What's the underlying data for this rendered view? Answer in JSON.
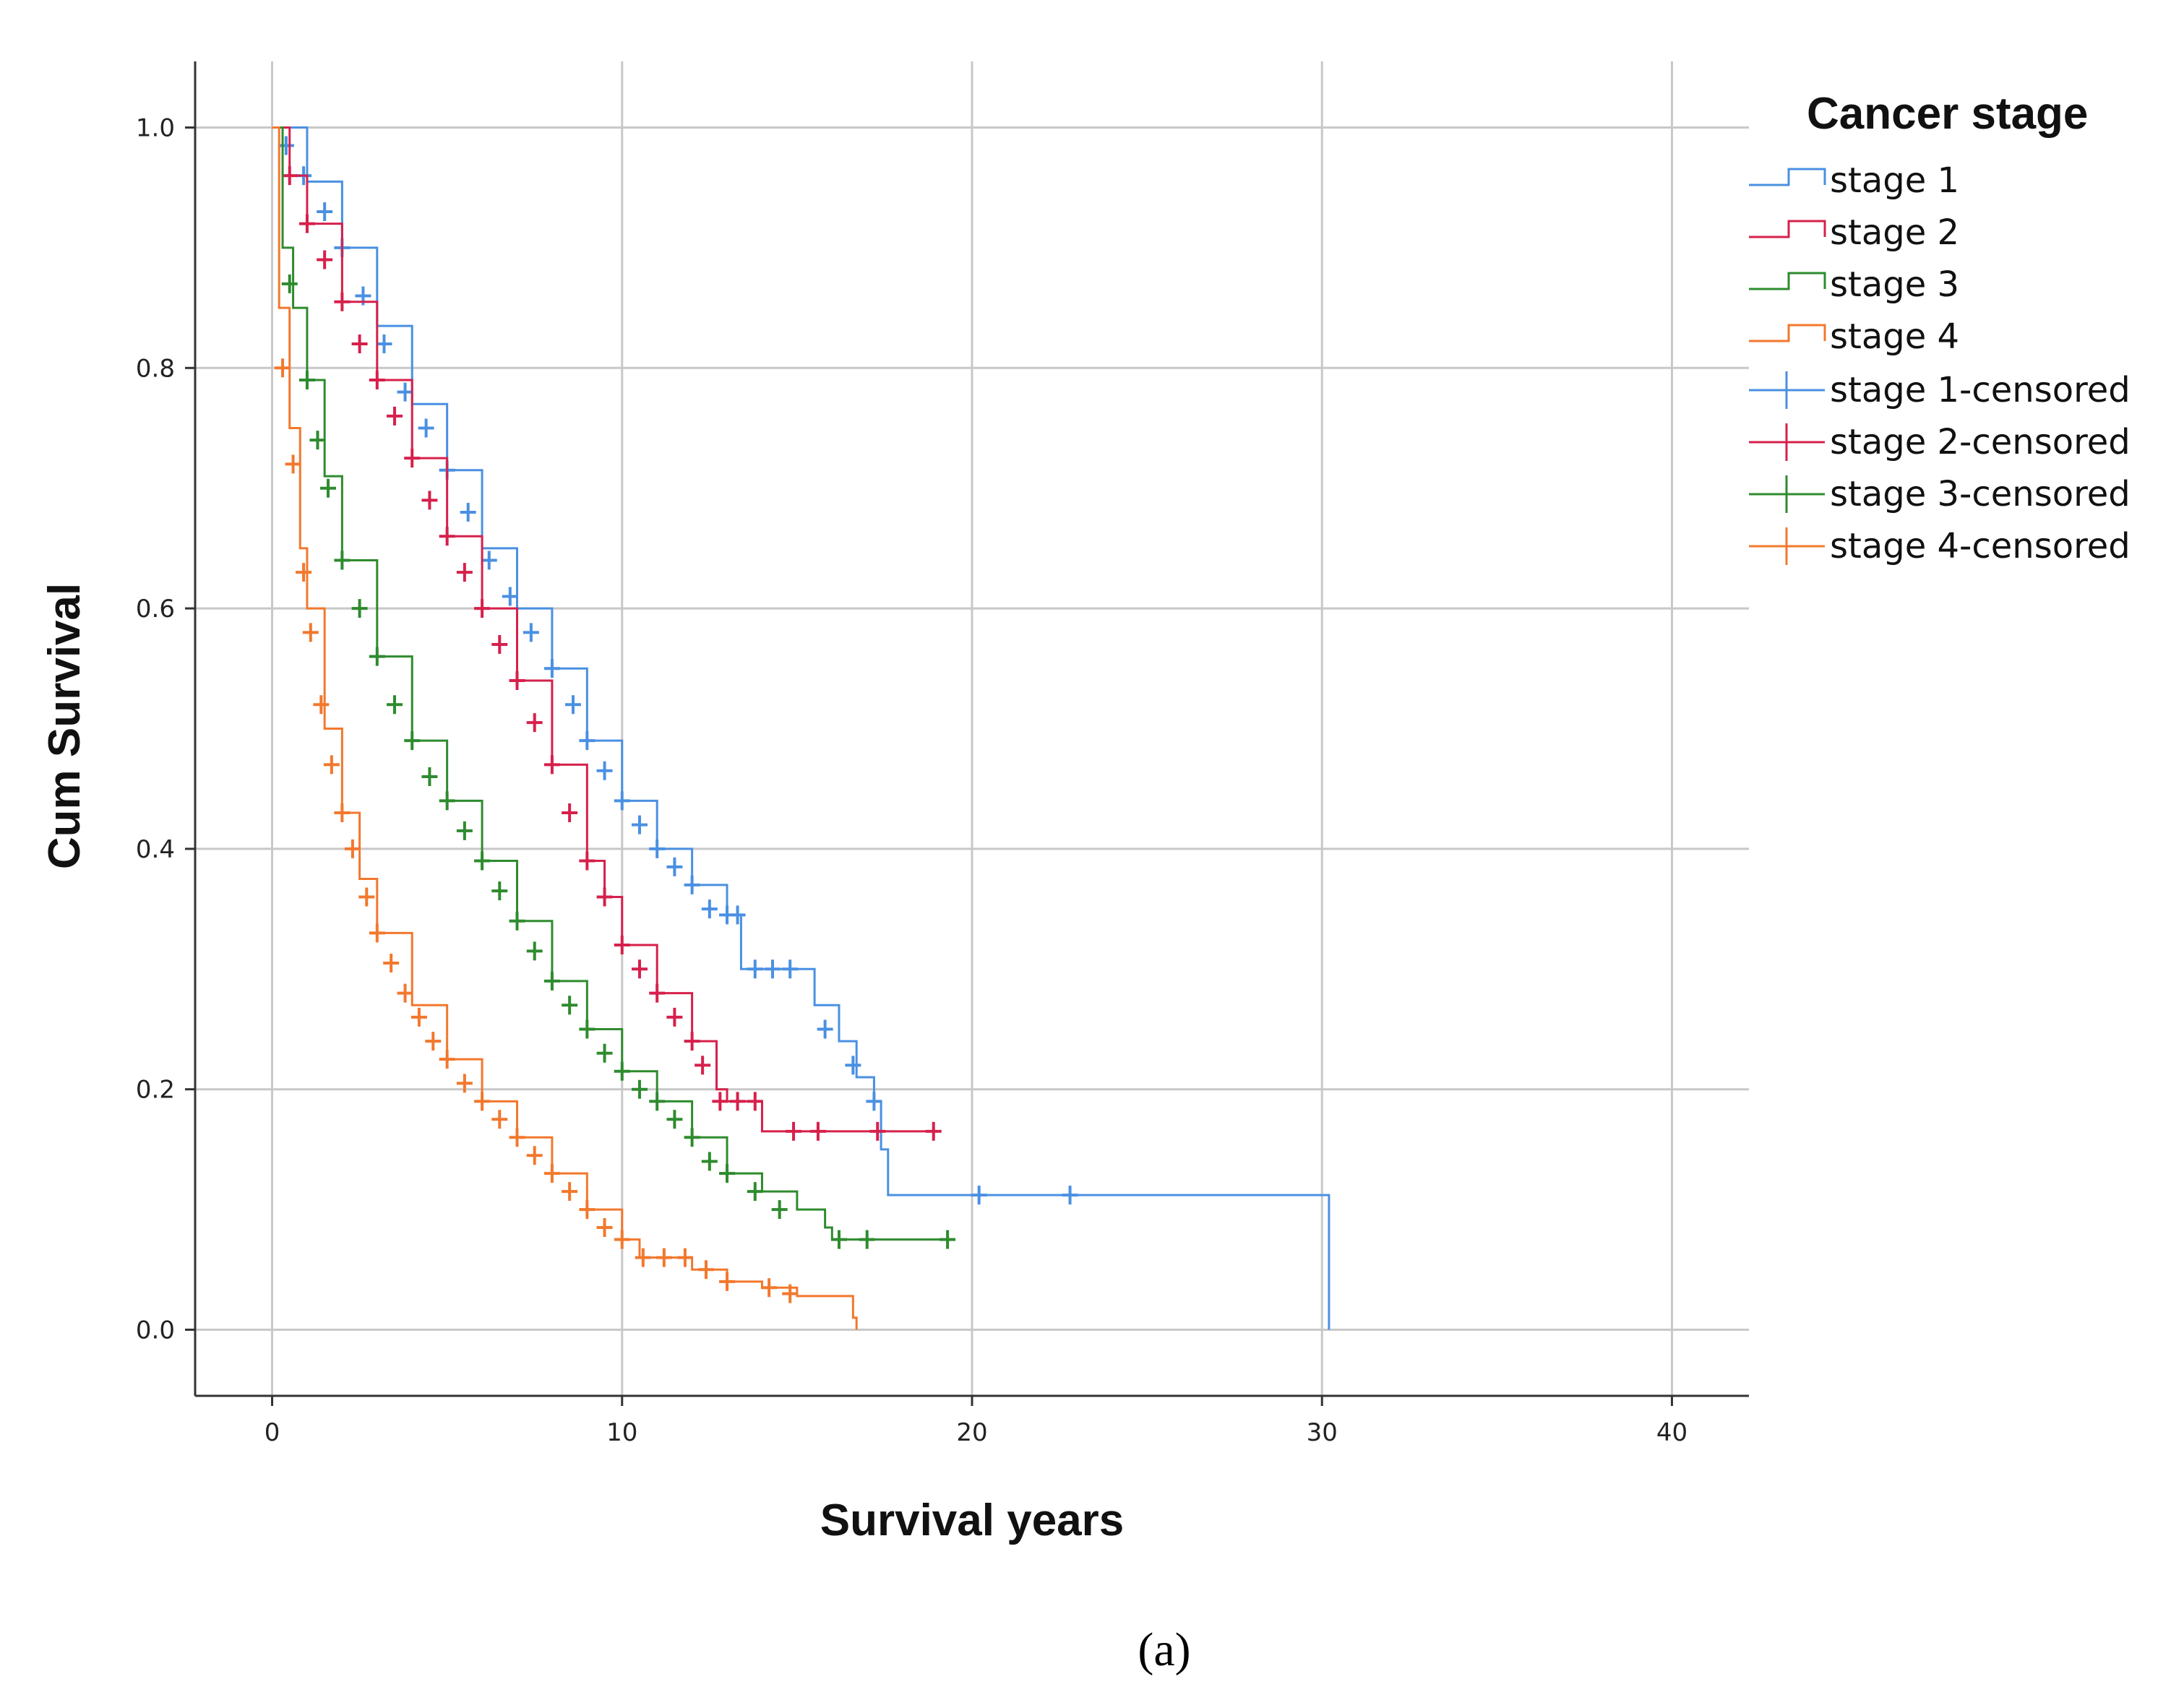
{
  "chart_data": {
    "type": "line",
    "subtype": "kaplan-meier",
    "xlabel": "Survival years",
    "ylabel": "Cum Survival",
    "xlim": [
      -2.2,
      42.2
    ],
    "ylim": [
      -0.055,
      1.055
    ],
    "xticks": [
      0,
      10,
      20,
      30,
      40
    ],
    "yticks": [
      0.0,
      0.2,
      0.4,
      0.6,
      0.8,
      1.0
    ],
    "ytick_labels": [
      "0.0",
      "0.2",
      "0.4",
      "0.6",
      "0.8",
      "1.0"
    ],
    "grid": true,
    "legend_title": "Cancer stage",
    "legend_position": "right",
    "caption": "(a)",
    "series": [
      {
        "name": "stage 1",
        "censored_label": "stage 1-censored",
        "color": "#4a90e2",
        "points": [
          [
            0,
            1.0
          ],
          [
            1,
            0.955
          ],
          [
            2,
            0.9
          ],
          [
            3,
            0.835
          ],
          [
            4,
            0.77
          ],
          [
            5,
            0.715
          ],
          [
            6,
            0.65
          ],
          [
            7,
            0.6
          ],
          [
            8,
            0.55
          ],
          [
            9,
            0.49
          ],
          [
            10,
            0.44
          ],
          [
            11,
            0.4
          ],
          [
            12,
            0.37
          ],
          [
            13,
            0.345
          ],
          [
            13.4,
            0.3
          ],
          [
            15.3,
            0.3
          ],
          [
            15.5,
            0.27
          ],
          [
            16.2,
            0.24
          ],
          [
            16.7,
            0.21
          ],
          [
            17.2,
            0.19
          ],
          [
            17.4,
            0.15
          ],
          [
            17.6,
            0.112
          ],
          [
            30.2,
            0.112
          ],
          [
            30.2,
            0.0
          ]
        ],
        "censored": [
          [
            0.4,
            0.985
          ],
          [
            0.9,
            0.96
          ],
          [
            1.5,
            0.93
          ],
          [
            2,
            0.9
          ],
          [
            2.6,
            0.86
          ],
          [
            3.2,
            0.82
          ],
          [
            3.8,
            0.78
          ],
          [
            4.4,
            0.75
          ],
          [
            5,
            0.715
          ],
          [
            5.6,
            0.68
          ],
          [
            6.2,
            0.64
          ],
          [
            6.8,
            0.61
          ],
          [
            7.4,
            0.58
          ],
          [
            8,
            0.55
          ],
          [
            8.6,
            0.52
          ],
          [
            9,
            0.49
          ],
          [
            9.5,
            0.465
          ],
          [
            10,
            0.44
          ],
          [
            10.5,
            0.42
          ],
          [
            11,
            0.4
          ],
          [
            11.5,
            0.385
          ],
          [
            12,
            0.37
          ],
          [
            12.5,
            0.35
          ],
          [
            13,
            0.345
          ],
          [
            13.3,
            0.345
          ],
          [
            13.8,
            0.3
          ],
          [
            14.3,
            0.3
          ],
          [
            14.8,
            0.3
          ],
          [
            15.8,
            0.25
          ],
          [
            16.6,
            0.22
          ],
          [
            17.2,
            0.19
          ],
          [
            20.2,
            0.112
          ],
          [
            22.8,
            0.112
          ]
        ]
      },
      {
        "name": "stage 2",
        "censored_label": "stage 2-censored",
        "color": "#d6204b",
        "points": [
          [
            0,
            1.0
          ],
          [
            0.5,
            0.96
          ],
          [
            1,
            0.92
          ],
          [
            2,
            0.855
          ],
          [
            3,
            0.79
          ],
          [
            4,
            0.725
          ],
          [
            5,
            0.66
          ],
          [
            6,
            0.6
          ],
          [
            7,
            0.54
          ],
          [
            8,
            0.47
          ],
          [
            9,
            0.39
          ],
          [
            9.5,
            0.36
          ],
          [
            10,
            0.32
          ],
          [
            11,
            0.28
          ],
          [
            12,
            0.24
          ],
          [
            12.7,
            0.2
          ],
          [
            13,
            0.19
          ],
          [
            13.9,
            0.19
          ],
          [
            14,
            0.165
          ],
          [
            18.9,
            0.165
          ]
        ],
        "censored": [
          [
            0.5,
            0.96
          ],
          [
            1,
            0.92
          ],
          [
            1.5,
            0.89
          ],
          [
            2,
            0.855
          ],
          [
            2.5,
            0.82
          ],
          [
            3,
            0.79
          ],
          [
            3.5,
            0.76
          ],
          [
            4,
            0.725
          ],
          [
            4.5,
            0.69
          ],
          [
            5,
            0.66
          ],
          [
            5.5,
            0.63
          ],
          [
            6,
            0.6
          ],
          [
            6.5,
            0.57
          ],
          [
            7,
            0.54
          ],
          [
            7.5,
            0.505
          ],
          [
            8,
            0.47
          ],
          [
            8.5,
            0.43
          ],
          [
            9,
            0.39
          ],
          [
            9.5,
            0.36
          ],
          [
            10,
            0.32
          ],
          [
            10.5,
            0.3
          ],
          [
            11,
            0.28
          ],
          [
            11.5,
            0.26
          ],
          [
            12,
            0.24
          ],
          [
            12.3,
            0.22
          ],
          [
            12.8,
            0.19
          ],
          [
            13.3,
            0.19
          ],
          [
            13.8,
            0.19
          ],
          [
            14.9,
            0.165
          ],
          [
            15.6,
            0.165
          ],
          [
            17.3,
            0.165
          ],
          [
            18.9,
            0.165
          ]
        ]
      },
      {
        "name": "stage 3",
        "censored_label": "stage 3-censored",
        "color": "#2e8b2e",
        "points": [
          [
            0,
            1.0
          ],
          [
            0.3,
            0.9
          ],
          [
            0.6,
            0.85
          ],
          [
            1,
            0.79
          ],
          [
            1.5,
            0.71
          ],
          [
            2,
            0.64
          ],
          [
            3,
            0.56
          ],
          [
            4,
            0.49
          ],
          [
            5,
            0.44
          ],
          [
            6,
            0.39
          ],
          [
            7,
            0.34
          ],
          [
            8,
            0.29
          ],
          [
            9,
            0.25
          ],
          [
            10,
            0.215
          ],
          [
            11,
            0.19
          ],
          [
            12,
            0.16
          ],
          [
            13,
            0.13
          ],
          [
            14,
            0.115
          ],
          [
            15,
            0.1
          ],
          [
            15.7,
            0.1
          ],
          [
            15.8,
            0.085
          ],
          [
            16,
            0.075
          ],
          [
            19.4,
            0.075
          ]
        ],
        "censored": [
          [
            0.5,
            0.87
          ],
          [
            1,
            0.79
          ],
          [
            1.3,
            0.74
          ],
          [
            1.6,
            0.7
          ],
          [
            2,
            0.64
          ],
          [
            2.5,
            0.6
          ],
          [
            3,
            0.56
          ],
          [
            3.5,
            0.52
          ],
          [
            4,
            0.49
          ],
          [
            4.5,
            0.46
          ],
          [
            5,
            0.44
          ],
          [
            5.5,
            0.415
          ],
          [
            6,
            0.39
          ],
          [
            6.5,
            0.365
          ],
          [
            7,
            0.34
          ],
          [
            7.5,
            0.315
          ],
          [
            8,
            0.29
          ],
          [
            8.5,
            0.27
          ],
          [
            9,
            0.25
          ],
          [
            9.5,
            0.23
          ],
          [
            10,
            0.215
          ],
          [
            10.5,
            0.2
          ],
          [
            11,
            0.19
          ],
          [
            11.5,
            0.175
          ],
          [
            12,
            0.16
          ],
          [
            12.5,
            0.14
          ],
          [
            13,
            0.13
          ],
          [
            13.8,
            0.115
          ],
          [
            14.5,
            0.1
          ],
          [
            16.2,
            0.075
          ],
          [
            17,
            0.075
          ],
          [
            19.3,
            0.075
          ]
        ]
      },
      {
        "name": "stage 4",
        "censored_label": "stage 4-censored",
        "color": "#f2782d",
        "points": [
          [
            0,
            1.0
          ],
          [
            0.2,
            0.85
          ],
          [
            0.5,
            0.75
          ],
          [
            0.8,
            0.65
          ],
          [
            1,
            0.6
          ],
          [
            1.5,
            0.5
          ],
          [
            2,
            0.43
          ],
          [
            2.5,
            0.375
          ],
          [
            3,
            0.33
          ],
          [
            4,
            0.27
          ],
          [
            5,
            0.225
          ],
          [
            6,
            0.19
          ],
          [
            7,
            0.16
          ],
          [
            8,
            0.13
          ],
          [
            9,
            0.1
          ],
          [
            10,
            0.075
          ],
          [
            10.5,
            0.06
          ],
          [
            12,
            0.05
          ],
          [
            13,
            0.04
          ],
          [
            14,
            0.035
          ],
          [
            15,
            0.028
          ],
          [
            16.5,
            0.028
          ],
          [
            16.6,
            0.01
          ],
          [
            16.7,
            0.0
          ]
        ],
        "censored": [
          [
            0.3,
            0.8
          ],
          [
            0.6,
            0.72
          ],
          [
            0.9,
            0.63
          ],
          [
            1.1,
            0.58
          ],
          [
            1.4,
            0.52
          ],
          [
            1.7,
            0.47
          ],
          [
            2,
            0.43
          ],
          [
            2.3,
            0.4
          ],
          [
            2.7,
            0.36
          ],
          [
            3,
            0.33
          ],
          [
            3.4,
            0.305
          ],
          [
            3.8,
            0.28
          ],
          [
            4.2,
            0.26
          ],
          [
            4.6,
            0.24
          ],
          [
            5,
            0.225
          ],
          [
            5.5,
            0.205
          ],
          [
            6,
            0.19
          ],
          [
            6.5,
            0.175
          ],
          [
            7,
            0.16
          ],
          [
            7.5,
            0.145
          ],
          [
            8,
            0.13
          ],
          [
            8.5,
            0.115
          ],
          [
            9,
            0.1
          ],
          [
            9.5,
            0.085
          ],
          [
            10,
            0.075
          ],
          [
            10.6,
            0.06
          ],
          [
            11.2,
            0.06
          ],
          [
            11.8,
            0.06
          ],
          [
            12.4,
            0.05
          ],
          [
            13,
            0.04
          ],
          [
            14.2,
            0.035
          ],
          [
            14.8,
            0.03
          ]
        ]
      }
    ]
  }
}
